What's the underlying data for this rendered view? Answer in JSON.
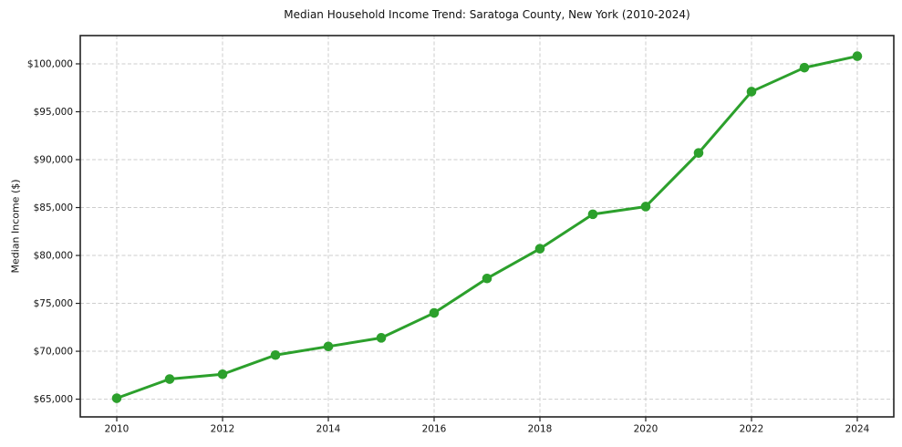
{
  "chart_data": {
    "type": "line",
    "title": "Median Household Income Trend: Saratoga County, New York (2010-2024)",
    "xlabel": "",
    "ylabel": "Median Income ($)",
    "x": [
      2010,
      2011,
      2012,
      2013,
      2014,
      2015,
      2016,
      2017,
      2018,
      2019,
      2020,
      2021,
      2022,
      2023,
      2024
    ],
    "series": [
      {
        "name": "Median Household Income",
        "values": [
          65100,
          67100,
          67600,
          69600,
          70500,
          71400,
          74000,
          77600,
          80700,
          84300,
          85100,
          90700,
          97100,
          99600,
          100800
        ],
        "color": "#2ca02c"
      }
    ],
    "xlim": [
      2009.31,
      2024.69
    ],
    "ylim": [
      63150,
      102950
    ],
    "xticks": [
      2010,
      2012,
      2014,
      2016,
      2018,
      2020,
      2022,
      2024
    ],
    "xtick_labels": [
      "2010",
      "2012",
      "2014",
      "2016",
      "2018",
      "2020",
      "2022",
      "2024"
    ],
    "yticks": [
      65000,
      70000,
      75000,
      80000,
      85000,
      90000,
      95000,
      100000
    ],
    "ytick_labels": [
      "$65,000",
      "$70,000",
      "$75,000",
      "$80,000",
      "$85,000",
      "$90,000",
      "$95,000",
      "$100,000"
    ],
    "grid": {
      "show": true,
      "style": "dashed",
      "color": "#cdcdcd"
    },
    "legend": "none",
    "marker": "circle"
  },
  "colors": {
    "line": "#2ca02c",
    "background": "#ffffff",
    "text": "#111111",
    "grid": "#cdcdcd",
    "spine": "#222222"
  }
}
